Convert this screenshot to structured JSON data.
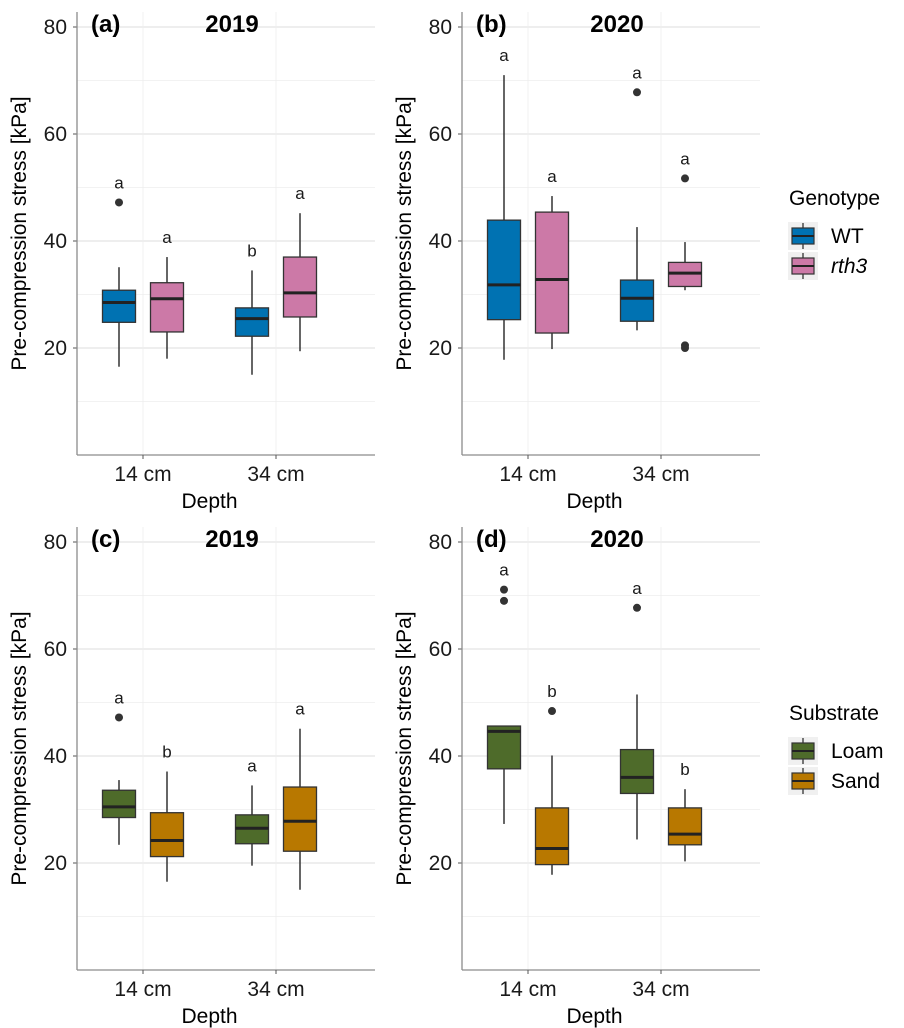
{
  "chart_data": [
    {
      "type": "boxplot",
      "panel_label": "(a)",
      "title": "2019",
      "xlabel": "Depth",
      "ylabel": "Pre-compression stress [kPa]",
      "ylim": [
        0,
        82
      ],
      "yticks": [
        20,
        40,
        60,
        80
      ],
      "grid": true,
      "categories": [
        "14 cm",
        "34 cm"
      ],
      "series": [
        {
          "name": "WT",
          "color": "#0072B2",
          "boxes": [
            {
              "min": 16.5,
              "q1": 24.8,
              "median": 28.5,
              "q3": 30.8,
              "max": 35.1,
              "outliers": [
                47.2
              ],
              "letter": "a"
            },
            {
              "min": 15.0,
              "q1": 22.2,
              "median": 25.5,
              "q3": 27.5,
              "max": 34.5,
              "outliers": [],
              "letter": "b"
            }
          ]
        },
        {
          "name": "rth3",
          "color": "#CC79A7",
          "boxes": [
            {
              "min": 18.0,
              "q1": 23.0,
              "median": 29.2,
              "q3": 32.2,
              "max": 37.0,
              "outliers": [],
              "letter": "a"
            },
            {
              "min": 19.4,
              "q1": 25.8,
              "median": 30.3,
              "q3": 37.0,
              "max": 45.2,
              "outliers": [],
              "letter": "a"
            }
          ]
        }
      ]
    },
    {
      "type": "boxplot",
      "panel_label": "(b)",
      "title": "2020",
      "xlabel": "Depth",
      "ylabel": "Pre-compression stress [kPa]",
      "ylim": [
        0,
        82
      ],
      "yticks": [
        20,
        40,
        60,
        80
      ],
      "grid": true,
      "categories": [
        "14 cm",
        "34 cm"
      ],
      "series": [
        {
          "name": "WT",
          "color": "#0072B2",
          "boxes": [
            {
              "min": 17.8,
              "q1": 25.3,
              "median": 31.8,
              "q3": 43.9,
              "max": 71.0,
              "outliers": [],
              "letter": "a"
            },
            {
              "min": 23.3,
              "q1": 25.0,
              "median": 29.3,
              "q3": 32.7,
              "max": 42.6,
              "outliers": [
                67.8
              ],
              "letter": "a"
            }
          ]
        },
        {
          "name": "rth3",
          "color": "#CC79A7",
          "boxes": [
            {
              "min": 19.8,
              "q1": 22.8,
              "median": 32.8,
              "q3": 45.4,
              "max": 48.4,
              "outliers": [],
              "letter": "a"
            },
            {
              "min": 30.8,
              "q1": 31.5,
              "median": 34.0,
              "q3": 36.0,
              "max": 39.8,
              "outliers": [
                51.7,
                20.5,
                20.0
              ],
              "letter": "a"
            }
          ]
        }
      ]
    },
    {
      "type": "boxplot",
      "panel_label": "(c)",
      "title": "2019",
      "xlabel": "Depth",
      "ylabel": "Pre-compression stress [kPa]",
      "ylim": [
        0,
        82
      ],
      "yticks": [
        20,
        40,
        60,
        80
      ],
      "grid": true,
      "categories": [
        "14 cm",
        "34 cm"
      ],
      "series": [
        {
          "name": "Loam",
          "color": "#4E6B2A",
          "boxes": [
            {
              "min": 23.4,
              "q1": 28.5,
              "median": 30.5,
              "q3": 33.6,
              "max": 35.5,
              "outliers": [
                47.2
              ],
              "letter": "a"
            },
            {
              "min": 19.5,
              "q1": 23.6,
              "median": 26.5,
              "q3": 29.0,
              "max": 34.5,
              "outliers": [],
              "letter": "a"
            }
          ]
        },
        {
          "name": "Sand",
          "color": "#B87800",
          "boxes": [
            {
              "min": 16.5,
              "q1": 21.2,
              "median": 24.2,
              "q3": 29.4,
              "max": 37.1,
              "outliers": [],
              "letter": "b"
            },
            {
              "min": 15.0,
              "q1": 22.2,
              "median": 27.8,
              "q3": 34.2,
              "max": 45.1,
              "outliers": [],
              "letter": "a"
            }
          ]
        }
      ]
    },
    {
      "type": "boxplot",
      "panel_label": "(d)",
      "title": "2020",
      "xlabel": "Depth",
      "ylabel": "Pre-compression stress [kPa]",
      "ylim": [
        0,
        82
      ],
      "yticks": [
        20,
        40,
        60,
        80
      ],
      "grid": true,
      "categories": [
        "14 cm",
        "34 cm"
      ],
      "series": [
        {
          "name": "Loam",
          "color": "#4E6B2A",
          "boxes": [
            {
              "min": 27.3,
              "q1": 37.6,
              "median": 44.6,
              "q3": 45.6,
              "max": 45.6,
              "outliers": [
                71.1,
                69.0
              ],
              "letter": "a"
            },
            {
              "min": 24.4,
              "q1": 33.0,
              "median": 36.0,
              "q3": 41.2,
              "max": 51.5,
              "outliers": [
                67.7
              ],
              "letter": "a"
            }
          ]
        },
        {
          "name": "Sand",
          "color": "#B87800",
          "boxes": [
            {
              "min": 17.8,
              "q1": 19.7,
              "median": 22.7,
              "q3": 30.3,
              "max": 40.1,
              "outliers": [
                48.4
              ],
              "letter": "b"
            },
            {
              "min": 20.3,
              "q1": 23.4,
              "median": 25.4,
              "q3": 30.3,
              "max": 33.8,
              "outliers": [],
              "letter": "b"
            }
          ]
        }
      ]
    }
  ],
  "legends": [
    {
      "title": "Genotype",
      "items": [
        {
          "label": "WT",
          "color": "#0072B2",
          "italic": false
        },
        {
          "label": "rth3",
          "color": "#CC79A7",
          "italic": true
        }
      ]
    },
    {
      "title": "Substrate",
      "items": [
        {
          "label": "Loam",
          "color": "#4E6B2A",
          "italic": false
        },
        {
          "label": "Sand",
          "color": "#B87800",
          "italic": false
        }
      ]
    }
  ]
}
